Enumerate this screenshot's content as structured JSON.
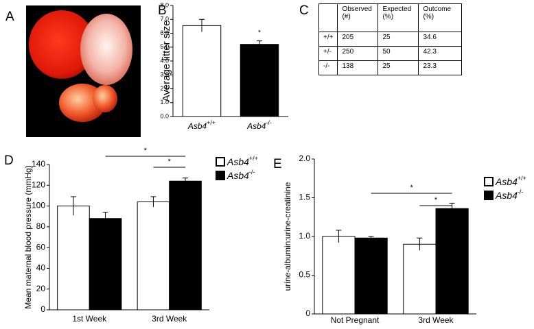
{
  "panels": [
    "A",
    "B",
    "C",
    "D",
    "E"
  ],
  "table": {
    "header": [
      "",
      "Observed (#)",
      "Expected (%)",
      "Outcome (%)"
    ],
    "rows": [
      [
        "+/+",
        "205",
        "25",
        "34.6"
      ],
      [
        "+/-",
        "250",
        "50",
        "42.3"
      ],
      [
        "-/-",
        "138",
        "25",
        "23.3"
      ]
    ]
  },
  "chart_data": [
    {
      "type": "bar",
      "y_label": "Average litter size",
      "categories": [
        "Asb4+/+",
        "Asb4-/-"
      ],
      "values": [
        6.55,
        5.2
      ],
      "errors": [
        0.45,
        0.25
      ],
      "colors": [
        "#ffffff",
        "#000000"
      ],
      "ylim": [
        0,
        8
      ],
      "yticks": [
        {
          "value": 0,
          "label": "0.0"
        },
        {
          "value": 1,
          "label": "1.0"
        },
        {
          "value": 2,
          "label": "2.0"
        },
        {
          "value": 3,
          "label": "3.0"
        },
        {
          "value": 4,
          "label": "4.0"
        },
        {
          "value": 5,
          "label": "5.0"
        },
        {
          "value": 6,
          "label": "6.0"
        },
        {
          "value": 7,
          "label": "7.0"
        },
        {
          "value": 8,
          "label": "8.0"
        }
      ],
      "annotations": [
        "*"
      ]
    },
    {
      "type": "grouped_bar",
      "y_label": "Mean maternal blood pressure (mmHg)",
      "categories": [
        "1st Week",
        "3rd Week"
      ],
      "series": [
        {
          "name": "Asb4+/+",
          "color": "#ffffff",
          "values": [
            100,
            104
          ],
          "errors": [
            9,
            5
          ]
        },
        {
          "name": "Asb4-/-",
          "color": "#000000",
          "values": [
            88,
            124
          ],
          "errors": [
            6,
            3
          ]
        }
      ],
      "ylim": [
        0,
        140
      ],
      "yticks": [
        0,
        20,
        40,
        60,
        80,
        100,
        120,
        140
      ],
      "annotations": [
        "*",
        "*"
      ]
    },
    {
      "type": "grouped_bar",
      "y_label": "urine-albumin:urine-creatinine",
      "categories": [
        "Not Pregnant",
        "3rd Week"
      ],
      "series": [
        {
          "name": "Asb4+/+",
          "color": "#ffffff",
          "values": [
            1.0,
            0.9
          ],
          "errors": [
            0.08,
            0.08
          ]
        },
        {
          "name": "Asb4-/-",
          "color": "#000000",
          "values": [
            0.98,
            1.36
          ],
          "errors": [
            0.02,
            0.07
          ]
        }
      ],
      "ylim": [
        0,
        2
      ],
      "yticks": [
        0,
        0.5,
        {
          "value": 1,
          "label": "1.0"
        },
        {
          "value": 1.5,
          "label": "1.5"
        },
        {
          "value": 2,
          "label": "2.0"
        }
      ],
      "annotations": [
        "*",
        "*"
      ]
    }
  ]
}
